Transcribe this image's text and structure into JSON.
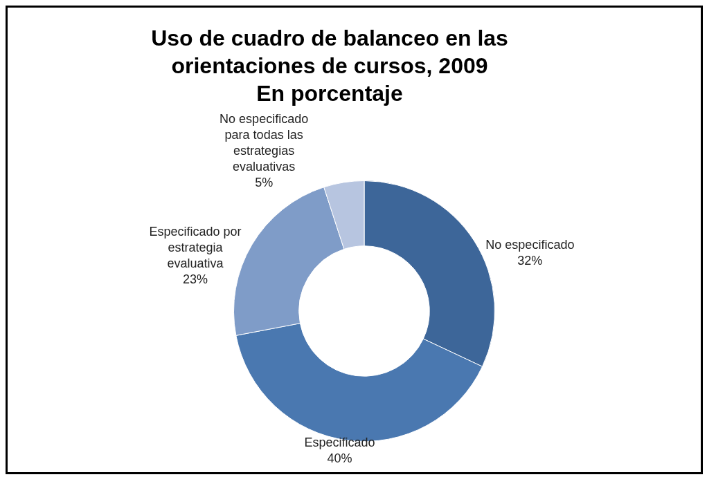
{
  "chart_data": {
    "type": "donut",
    "title": "Uso de cuadro de balanceo en las orientaciones de cursos, 2009",
    "subtitle": "En porcentaje",
    "categories": [
      "No especificado",
      "Especificado",
      "Especificado por estrategia evaluativa",
      "No especificado para todas las estrategias evaluativas"
    ],
    "values": [
      32,
      40,
      23,
      5
    ],
    "value_labels": [
      "32%",
      "40%",
      "23%",
      "5%"
    ],
    "colors": [
      "#3d6699",
      "#4a78b0",
      "#7f9cc8",
      "#b7c5e0"
    ],
    "legend": false
  }
}
